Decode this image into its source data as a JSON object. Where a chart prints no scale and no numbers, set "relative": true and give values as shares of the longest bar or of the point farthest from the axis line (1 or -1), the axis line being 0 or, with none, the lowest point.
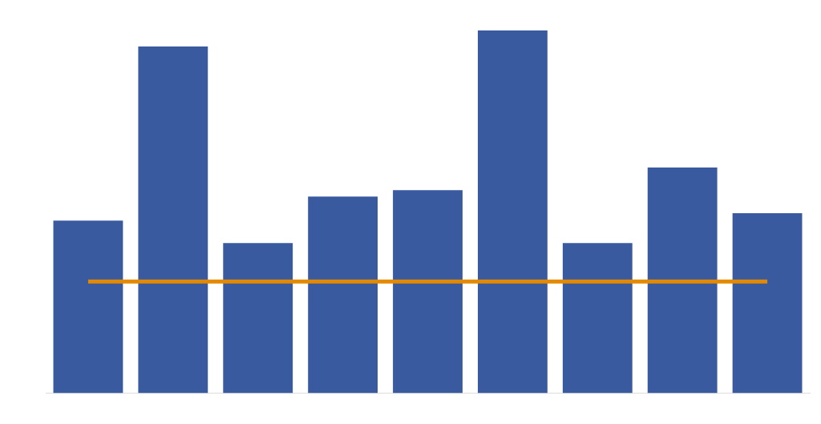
{
  "chart_data": {
    "type": "bar",
    "relative": true,
    "categories": [
      null,
      null,
      null,
      null,
      null,
      null,
      null,
      null,
      null
    ],
    "series": [
      {
        "color": "#3a5aa0",
        "values": [
          0.476,
          0.956,
          0.414,
          0.542,
          0.56,
          1,
          0.414,
          0.622,
          0.496
        ]
      }
    ],
    "ref_lines": [
      {
        "axis": "y",
        "value": 0.308,
        "color": "#e38a00"
      }
    ],
    "legend": false
  }
}
